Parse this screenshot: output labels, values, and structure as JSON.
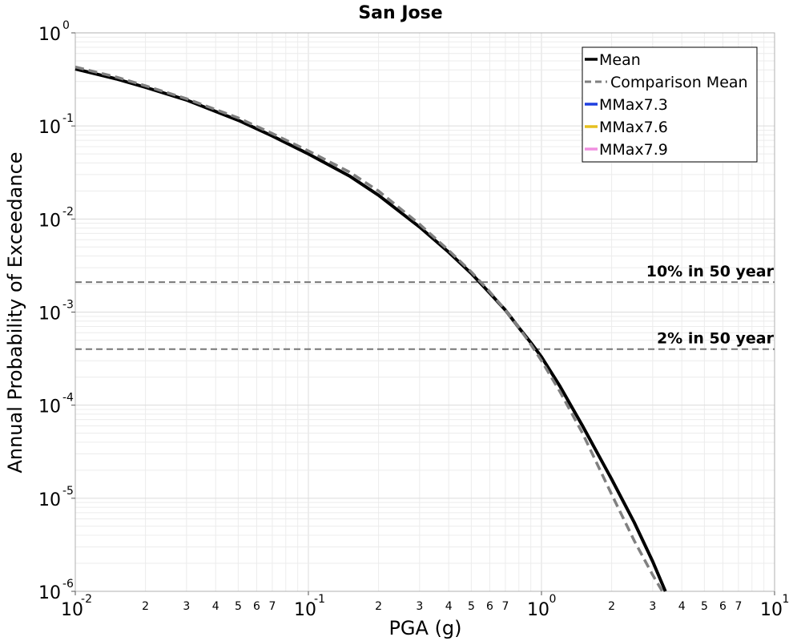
{
  "chart_data": {
    "type": "line",
    "title": "San Jose",
    "xlabel": "PGA (g)",
    "ylabel": "Annual Probability of Exceedance",
    "xscale": "log",
    "yscale": "log",
    "xlim": [
      0.01,
      10
    ],
    "ylim": [
      1e-06,
      1
    ],
    "grid": true,
    "legend_position": "top-right",
    "x_major_ticks": [
      {
        "base": "10",
        "exp": "-2"
      },
      {
        "base": "10",
        "exp": "-1"
      },
      {
        "base": "10",
        "exp": "0"
      },
      {
        "base": "10",
        "exp": "1"
      }
    ],
    "y_major_ticks": [
      {
        "base": "10",
        "exp": "0"
      },
      {
        "base": "10",
        "exp": "-1"
      },
      {
        "base": "10",
        "exp": "-2"
      },
      {
        "base": "10",
        "exp": "-3"
      },
      {
        "base": "10",
        "exp": "-4"
      },
      {
        "base": "10",
        "exp": "-5"
      },
      {
        "base": "10",
        "exp": "-6"
      }
    ],
    "x_minor_tick_labels": [
      "2",
      "3",
      "4",
      "5",
      "6",
      "7"
    ],
    "series": [
      {
        "name": "Mean",
        "color": "#000000",
        "style": "solid",
        "x": [
          0.01,
          0.015,
          0.02,
          0.03,
          0.05,
          0.07,
          0.1,
          0.15,
          0.2,
          0.3,
          0.4,
          0.5,
          0.6,
          0.7,
          0.8,
          0.9,
          1.0,
          1.2,
          1.5,
          2.0,
          2.5,
          3.0,
          3.4
        ],
        "y": [
          0.41,
          0.32,
          0.26,
          0.19,
          0.115,
          0.078,
          0.05,
          0.029,
          0.018,
          0.0082,
          0.0044,
          0.0026,
          0.0016,
          0.00105,
          0.00068,
          0.00047,
          0.00033,
          0.00016,
          6e-05,
          1.6e-05,
          5.5e-06,
          2.1e-06,
          1e-06
        ]
      },
      {
        "name": "Comparison Mean",
        "color": "#808080",
        "style": "dashed",
        "x": [
          0.01,
          0.015,
          0.02,
          0.03,
          0.05,
          0.07,
          0.1,
          0.15,
          0.2,
          0.3,
          0.4,
          0.5,
          0.6,
          0.7,
          0.8,
          0.9,
          1.0,
          1.2,
          1.5,
          2.0,
          2.5,
          3.0,
          3.3
        ],
        "y": [
          0.43,
          0.335,
          0.27,
          0.196,
          0.122,
          0.083,
          0.054,
          0.032,
          0.02,
          0.0088,
          0.0046,
          0.0027,
          0.00165,
          0.00105,
          0.00068,
          0.00045,
          0.0003,
          0.00014,
          5e-05,
          1.1e-05,
          3.5e-06,
          1.5e-06,
          1e-06
        ]
      },
      {
        "name": "MMax7.3",
        "color": "#1f3fe0",
        "style": "solid",
        "x": [],
        "y": []
      },
      {
        "name": "MMax7.6",
        "color": "#e6c020",
        "style": "solid",
        "x": [],
        "y": []
      },
      {
        "name": "MMax7.9",
        "color": "#f08fe0",
        "style": "solid",
        "x": [],
        "y": []
      }
    ],
    "reference_lines": [
      {
        "label": "10% in 50 year",
        "y": 0.0021,
        "color": "#777777",
        "style": "dashed"
      },
      {
        "label": "2% in 50 year",
        "y": 0.0004,
        "color": "#777777",
        "style": "dashed"
      }
    ]
  }
}
